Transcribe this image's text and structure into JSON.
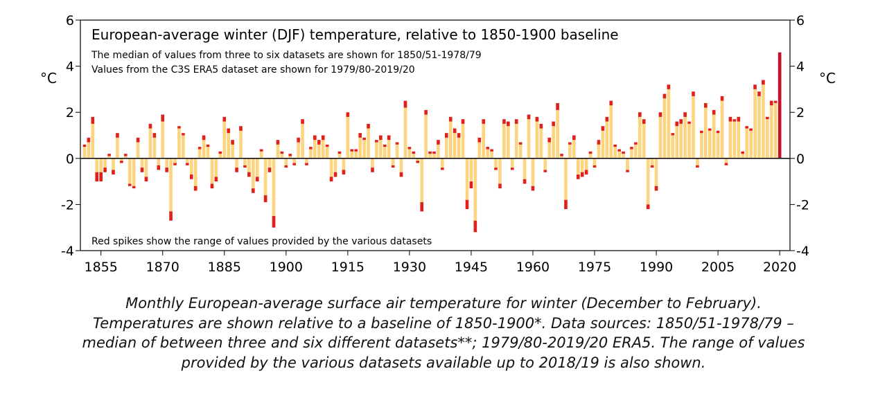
{
  "chart_data": {
    "type": "bar",
    "title": "European-average winter (DJF) temperature, relative to 1850-1900 baseline",
    "notes": [
      "The median of values from three to six datasets are shown for 1850/51-1978/79",
      "Values from the C3S ERA5 dataset are shown for 1979/80-2019/20"
    ],
    "footnote": "Red spikes show the range of values provided by the various datasets",
    "y_label": "°C",
    "x": [
      1851,
      1852,
      1853,
      1854,
      1855,
      1856,
      1857,
      1858,
      1859,
      1860,
      1861,
      1862,
      1863,
      1864,
      1865,
      1866,
      1867,
      1868,
      1869,
      1870,
      1871,
      1872,
      1873,
      1874,
      1875,
      1876,
      1877,
      1878,
      1879,
      1880,
      1881,
      1882,
      1883,
      1884,
      1885,
      1886,
      1887,
      1888,
      1889,
      1890,
      1891,
      1892,
      1893,
      1894,
      1895,
      1896,
      1897,
      1898,
      1899,
      1900,
      1901,
      1902,
      1903,
      1904,
      1905,
      1906,
      1907,
      1908,
      1909,
      1910,
      1911,
      1912,
      1913,
      1914,
      1915,
      1916,
      1917,
      1918,
      1919,
      1920,
      1921,
      1922,
      1923,
      1924,
      1925,
      1926,
      1927,
      1928,
      1929,
      1930,
      1931,
      1932,
      1933,
      1934,
      1935,
      1936,
      1937,
      1938,
      1939,
      1940,
      1941,
      1942,
      1943,
      1944,
      1945,
      1946,
      1947,
      1948,
      1949,
      1950,
      1951,
      1952,
      1953,
      1954,
      1955,
      1956,
      1957,
      1958,
      1959,
      1960,
      1961,
      1962,
      1963,
      1964,
      1965,
      1966,
      1967,
      1968,
      1969,
      1970,
      1971,
      1972,
      1973,
      1974,
      1975,
      1976,
      1977,
      1978,
      1979,
      1980,
      1981,
      1982,
      1983,
      1984,
      1985,
      1986,
      1987,
      1988,
      1989,
      1990,
      1991,
      1992,
      1993,
      1994,
      1995,
      1996,
      1997,
      1998,
      1999,
      2000,
      2001,
      2002,
      2003,
      2004,
      2005,
      2006,
      2007,
      2008,
      2009,
      2010,
      2011,
      2012,
      2013,
      2014,
      2015,
      2016,
      2017,
      2018,
      2019,
      2020
    ],
    "values": [
      0.5,
      0.7,
      1.5,
      -0.6,
      -0.6,
      -0.4,
      0.1,
      -0.5,
      0.9,
      -0.1,
      0.1,
      -1.1,
      -1.2,
      0.7,
      -0.4,
      -0.8,
      1.3,
      0.9,
      -0.3,
      1.6,
      -0.4,
      -2.3,
      -0.2,
      1.3,
      1.0,
      -0.2,
      -0.7,
      -1.2,
      0.4,
      0.8,
      0.5,
      -1.1,
      -0.8,
      0.2,
      1.6,
      1.1,
      0.6,
      -0.4,
      1.2,
      -0.3,
      -0.6,
      -1.3,
      -0.8,
      0.3,
      -1.6,
      -0.4,
      -2.5,
      0.6,
      0.2,
      -0.3,
      0.1,
      -0.2,
      0.7,
      1.5,
      -0.2,
      0.4,
      0.8,
      0.6,
      0.8,
      0.5,
      -0.8,
      -0.6,
      0.2,
      -0.5,
      1.8,
      0.3,
      0.3,
      0.9,
      0.8,
      1.3,
      -0.4,
      0.7,
      0.8,
      0.5,
      0.8,
      -0.3,
      0.6,
      -0.6,
      2.2,
      0.4,
      0.2,
      -0.1,
      -1.9,
      1.9,
      0.2,
      0.2,
      0.6,
      -0.4,
      0.9,
      1.6,
      1.1,
      0.9,
      1.5,
      -1.8,
      -1.0,
      -2.7,
      0.7,
      1.5,
      0.4,
      0.3,
      -0.4,
      -1.1,
      1.5,
      1.4,
      -0.4,
      1.5,
      0.6,
      -0.9,
      1.7,
      -1.2,
      1.6,
      1.3,
      -0.5,
      0.7,
      1.4,
      2.1,
      0.1,
      -1.8,
      0.6,
      0.8,
      -0.7,
      -0.6,
      -0.5,
      0.2,
      -0.3,
      0.6,
      1.2,
      1.6,
      2.3,
      0.5,
      0.3,
      0.2,
      -0.5,
      0.4,
      0.6,
      1.8,
      1.5,
      -2.0,
      -0.3,
      -1.2,
      1.8,
      2.6,
      3.0,
      1.0,
      1.4,
      1.5,
      1.8,
      1.5,
      2.7,
      -0.3,
      1.1,
      2.2,
      1.2,
      1.9,
      1.1,
      2.5,
      -0.2,
      1.6,
      1.6,
      1.6,
      0.2,
      1.3,
      1.2,
      3.0,
      2.7,
      3.2,
      1.7,
      2.3,
      2.4,
      4.6
    ],
    "spikes": [
      0.1,
      0.2,
      0.3,
      0.4,
      0.4,
      0.2,
      0.1,
      0.2,
      0.2,
      0.1,
      0.1,
      0.1,
      0.1,
      0.2,
      0.2,
      0.2,
      0.2,
      0.2,
      0.2,
      0.3,
      0.2,
      0.4,
      0.1,
      0.1,
      0.1,
      0.1,
      0.2,
      0.2,
      0.1,
      0.2,
      0.1,
      0.2,
      0.2,
      0.1,
      0.2,
      0.2,
      0.2,
      0.2,
      0.2,
      0.1,
      0.2,
      0.2,
      0.2,
      0.1,
      0.3,
      0.2,
      0.5,
      0.2,
      0.1,
      0.1,
      0.1,
      0.1,
      0.2,
      0.2,
      0.1,
      0.1,
      0.2,
      0.2,
      0.2,
      0.1,
      0.2,
      0.2,
      0.1,
      0.2,
      0.2,
      0.1,
      0.1,
      0.2,
      0.1,
      0.2,
      0.2,
      0.1,
      0.2,
      0.1,
      0.2,
      0.1,
      0.1,
      0.2,
      0.3,
      0.1,
      0.1,
      0.1,
      0.4,
      0.2,
      0.1,
      0.1,
      0.2,
      0.1,
      0.2,
      0.2,
      0.2,
      0.2,
      0.2,
      0.4,
      0.3,
      0.5,
      0.2,
      0.2,
      0.1,
      0.1,
      0.1,
      0.2,
      0.2,
      0.2,
      0.1,
      0.2,
      0.1,
      0.2,
      0.2,
      0.2,
      0.2,
      0.2,
      0.1,
      0.2,
      0.2,
      0.3,
      0.1,
      0.4,
      0.1,
      0.2,
      0.2,
      0.2,
      0.2,
      0.1,
      0.1,
      0.2,
      0.2,
      0.2,
      0.2,
      0.1,
      0.1,
      0.1,
      0.1,
      0.1,
      0.1,
      0.2,
      0.2,
      0.2,
      0.1,
      0.2,
      0.2,
      0.2,
      0.2,
      0.1,
      0.2,
      0.2,
      0.2,
      0.1,
      0.2,
      0.1,
      0.1,
      0.2,
      0.1,
      0.2,
      0.1,
      0.2,
      0.1,
      0.2,
      0.1,
      0.2,
      0.1,
      0.1,
      0.1,
      0.2,
      0.2,
      0.2,
      0.1,
      0.2,
      0.1,
      0
    ],
    "color": "#fdd47f",
    "spike_color": "#e0201b",
    "last_color": "#c8102e",
    "xlim": [
      1850,
      2022.5
    ],
    "xticks": [
      1855,
      1870,
      1885,
      1900,
      1915,
      1930,
      1945,
      1960,
      1975,
      1990,
      2005,
      2020
    ],
    "ylim": [
      -4,
      6
    ],
    "yticks": [
      -4,
      -2,
      0,
      2,
      4,
      6
    ],
    "y2lim": [
      -4,
      6
    ],
    "y2ticks": [
      -4,
      -2,
      0,
      2,
      4,
      6
    ]
  },
  "caption": [
    "Monthly European-average surface air temperature for winter (December to February).",
    "Temperatures are shown relative to a baseline of 1850-1900*. Data sources: 1850/51-1978/79 –",
    "median of between three and six different datasets**; 1979/80-2019/20 ERA5. The range of values",
    "provided by the various datasets available up to 2018/19 is also shown."
  ]
}
